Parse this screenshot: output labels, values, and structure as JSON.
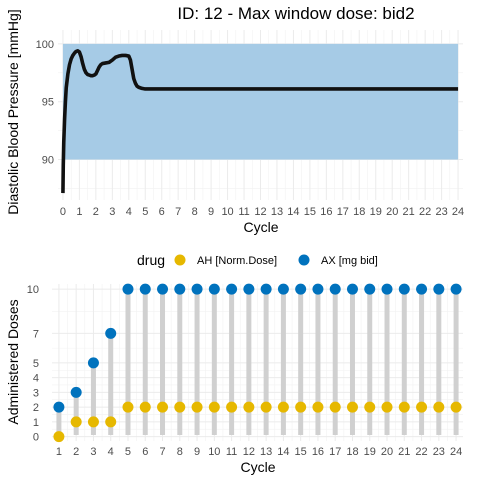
{
  "chart_data": [
    {
      "type": "line",
      "title": "ID: 12 -  Max window dose: bid2",
      "xlabel": "Cycle",
      "ylabel": "Diastolic Blood Pressure [mmHg]",
      "xlim": [
        -0.3,
        24.3
      ],
      "ylim": [
        86.5,
        101.2
      ],
      "x_ticks": [
        0,
        1,
        2,
        3,
        4,
        5,
        6,
        7,
        8,
        9,
        10,
        11,
        12,
        13,
        14,
        15,
        16,
        17,
        18,
        19,
        20,
        21,
        22,
        23,
        24
      ],
      "y_ticks": [
        90,
        95,
        100
      ],
      "target_band": {
        "ymin": 90,
        "ymax": 100,
        "color": "#a6cbe6"
      },
      "grid": true,
      "series": [
        {
          "color": "#111111",
          "points": [
            [
              0.0,
              87.1
            ],
            [
              0.02,
              89.5
            ],
            [
              0.05,
              91.5
            ],
            [
              0.1,
              93.5
            ],
            [
              0.15,
              95.0
            ],
            [
              0.2,
              96.2
            ],
            [
              0.3,
              97.4
            ],
            [
              0.4,
              98.2
            ],
            [
              0.5,
              98.7
            ],
            [
              0.6,
              99.0
            ],
            [
              0.7,
              99.2
            ],
            [
              0.8,
              99.35
            ],
            [
              0.9,
              99.4
            ],
            [
              1.0,
              99.3
            ],
            [
              1.1,
              98.9
            ],
            [
              1.2,
              98.3
            ],
            [
              1.3,
              97.8
            ],
            [
              1.4,
              97.5
            ],
            [
              1.5,
              97.35
            ],
            [
              1.6,
              97.3
            ],
            [
              1.7,
              97.25
            ],
            [
              1.8,
              97.25
            ],
            [
              1.9,
              97.3
            ],
            [
              2.0,
              97.4
            ],
            [
              2.1,
              97.7
            ],
            [
              2.2,
              98.0
            ],
            [
              2.3,
              98.2
            ],
            [
              2.4,
              98.3
            ],
            [
              2.6,
              98.35
            ],
            [
              2.8,
              98.4
            ],
            [
              3.0,
              98.6
            ],
            [
              3.2,
              98.85
            ],
            [
              3.4,
              98.95
            ],
            [
              3.6,
              99.0
            ],
            [
              3.8,
              99.0
            ],
            [
              4.0,
              98.95
            ],
            [
              4.1,
              98.6
            ],
            [
              4.2,
              97.8
            ],
            [
              4.3,
              97.0
            ],
            [
              4.4,
              96.6
            ],
            [
              4.5,
              96.35
            ],
            [
              4.6,
              96.25
            ],
            [
              4.8,
              96.15
            ],
            [
              5.0,
              96.1
            ],
            [
              6.0,
              96.1
            ],
            [
              10.0,
              96.1
            ],
            [
              15.0,
              96.1
            ],
            [
              20.0,
              96.1
            ],
            [
              24.0,
              96.1
            ]
          ]
        }
      ]
    },
    {
      "type": "scatter",
      "xlabel": "Cycle",
      "ylabel": "Administered Doses",
      "xlim": [
        0.6,
        24.4
      ],
      "ylim": [
        -0.3,
        10.35
      ],
      "x_ticks": [
        1,
        2,
        3,
        4,
        5,
        6,
        7,
        8,
        9,
        10,
        11,
        12,
        13,
        14,
        15,
        16,
        17,
        18,
        19,
        20,
        21,
        22,
        23,
        24
      ],
      "y_ticks": [
        0,
        1,
        2,
        3,
        4,
        5,
        7,
        10
      ],
      "grid": true,
      "legend": {
        "title": "drug",
        "placement": "top",
        "entries": [
          {
            "label": "AH [Norm.Dose]",
            "color": "#e6b800"
          },
          {
            "label": "AX [mg bid]",
            "color": "#0072bd"
          }
        ]
      },
      "series": [
        {
          "name": "AH [Norm.Dose]",
          "color": "#e6b800",
          "x": [
            1,
            2,
            3,
            4,
            5,
            6,
            7,
            8,
            9,
            10,
            11,
            12,
            13,
            14,
            15,
            16,
            17,
            18,
            19,
            20,
            21,
            22,
            23,
            24
          ],
          "values": [
            0,
            1,
            1,
            1,
            2,
            2,
            2,
            2,
            2,
            2,
            2,
            2,
            2,
            2,
            2,
            2,
            2,
            2,
            2,
            2,
            2,
            2,
            2,
            2
          ]
        },
        {
          "name": "AX [mg bid]",
          "color": "#0072bd",
          "x": [
            1,
            2,
            3,
            4,
            5,
            6,
            7,
            8,
            9,
            10,
            11,
            12,
            13,
            14,
            15,
            16,
            17,
            18,
            19,
            20,
            21,
            22,
            23,
            24
          ],
          "values": [
            2,
            3,
            5,
            7,
            10,
            10,
            10,
            10,
            10,
            10,
            10,
            10,
            10,
            10,
            10,
            10,
            10,
            10,
            10,
            10,
            10,
            10,
            10,
            10
          ]
        }
      ],
      "stem_color": "#d0d0d0"
    }
  ]
}
